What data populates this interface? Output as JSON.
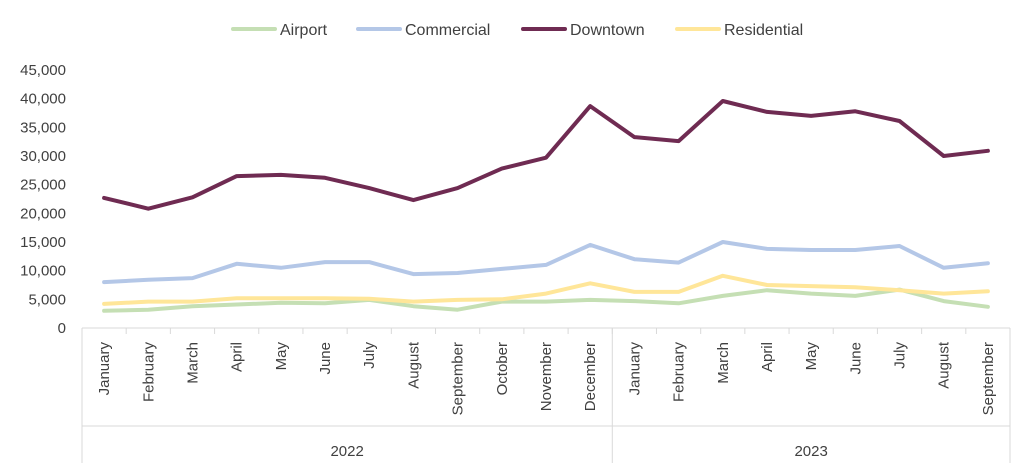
{
  "chart_data": {
    "type": "line",
    "x": [
      "January",
      "February",
      "March",
      "April",
      "May",
      "June",
      "July",
      "August",
      "September",
      "October",
      "November",
      "December",
      "January",
      "February",
      "March",
      "April",
      "May",
      "June",
      "July",
      "August",
      "September"
    ],
    "groups": [
      {
        "label": "2022",
        "count": 12
      },
      {
        "label": "2023",
        "count": 9
      }
    ],
    "series": [
      {
        "name": "Airport",
        "color": "#c5dfb4",
        "values": [
          3000,
          3200,
          3800,
          4100,
          4400,
          4300,
          4900,
          3800,
          3200,
          4600,
          4600,
          4900,
          4700,
          4300,
          5600,
          6600,
          6000,
          5600,
          6700,
          4700,
          3700
        ]
      },
      {
        "name": "Commercial",
        "color": "#b4c7e7",
        "values": [
          8000,
          8400,
          8700,
          11200,
          10500,
          11500,
          11500,
          9400,
          9600,
          10300,
          11000,
          14500,
          12000,
          11400,
          15000,
          13800,
          13600,
          13600,
          14300,
          10500,
          11300
        ]
      },
      {
        "name": "Downtown",
        "color": "#6f2b52",
        "values": [
          22700,
          20800,
          22800,
          26500,
          26700,
          26200,
          24400,
          22300,
          24400,
          27800,
          29700,
          38700,
          33300,
          32600,
          39600,
          37700,
          37000,
          37800,
          36100,
          30000,
          30900
        ]
      },
      {
        "name": "Residential",
        "color": "#ffe699",
        "values": [
          4200,
          4600,
          4600,
          5200,
          5200,
          5200,
          5100,
          4600,
          4900,
          5000,
          6000,
          7800,
          6300,
          6300,
          9100,
          7500,
          7300,
          7100,
          6600,
          6000,
          6400
        ]
      }
    ],
    "y_ticks": [
      "0",
      "5,000",
      "10,000",
      "15,000",
      "20,000",
      "25,000",
      "30,000",
      "35,000",
      "40,000",
      "45,000"
    ],
    "ylim": [
      0,
      45000
    ],
    "legend_position": "top",
    "grid": false
  }
}
